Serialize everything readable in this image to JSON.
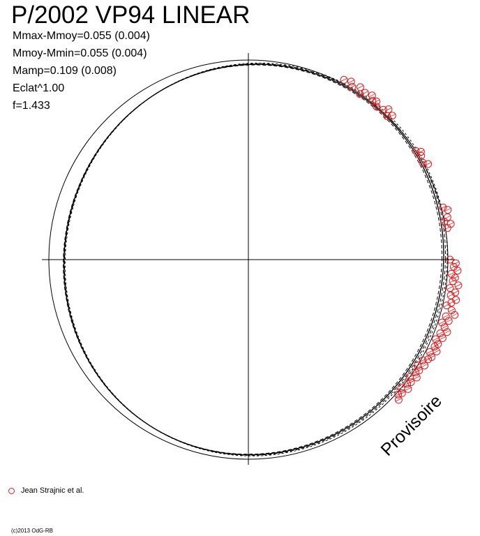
{
  "header": {
    "title": "P/2002 VP94 LINEAR",
    "stats": [
      "Mmax-Mmoy=0.055 (0.004)",
      "Mmoy-Mmin=0.055 (0.004)",
      "Mamp=0.109 (0.008)",
      "Eclat^1.00",
      "f=1.433"
    ]
  },
  "legend": {
    "label": "Jean Strajnic et al.",
    "color": "#e41a1c"
  },
  "footer": {
    "copyright": "(c)2013 OdG-RB",
    "watermark": "Provisoire"
  },
  "chart_data": {
    "type": "scatter",
    "projection": "polar",
    "reference_circle": true,
    "model_amplitude": 0.109,
    "series": [
      {
        "name": "Jean Strajnic et al.",
        "color": "#e41a1c",
        "marker": "open-circle",
        "points": [
          {
            "angle_deg": 62,
            "r": 1.02
          },
          {
            "angle_deg": 60,
            "r": 1.03
          },
          {
            "angle_deg": 59,
            "r": 1.01
          },
          {
            "angle_deg": 57,
            "r": 1.03
          },
          {
            "angle_deg": 56,
            "r": 1.0
          },
          {
            "angle_deg": 55,
            "r": 1.02
          },
          {
            "angle_deg": 53,
            "r": 1.03
          },
          {
            "angle_deg": 52,
            "r": 1.01
          },
          {
            "angle_deg": 51,
            "r": 1.02
          },
          {
            "angle_deg": 50,
            "r": 1.0
          },
          {
            "angle_deg": 48,
            "r": 1.01
          },
          {
            "angle_deg": 47,
            "r": 1.03
          },
          {
            "angle_deg": 46,
            "r": 1.0
          },
          {
            "angle_deg": 45,
            "r": 1.02
          },
          {
            "angle_deg": 33,
            "r": 1.0
          },
          {
            "angle_deg": 32,
            "r": 1.02
          },
          {
            "angle_deg": 31,
            "r": 1.01
          },
          {
            "angle_deg": 29,
            "r": 1.0
          },
          {
            "angle_deg": 28,
            "r": 1.02
          },
          {
            "angle_deg": 15,
            "r": 1.01
          },
          {
            "angle_deg": 14,
            "r": 1.03
          },
          {
            "angle_deg": 12,
            "r": 1.02
          },
          {
            "angle_deg": 11,
            "r": 1.0
          },
          {
            "angle_deg": 10,
            "r": 1.03
          },
          {
            "angle_deg": 9,
            "r": 1.01
          },
          {
            "angle_deg": 0,
            "r": 1.01
          },
          {
            "angle_deg": -1,
            "r": 1.04
          },
          {
            "angle_deg": -2,
            "r": 1.03
          },
          {
            "angle_deg": -3,
            "r": 1.05
          },
          {
            "angle_deg": -4,
            "r": 1.02
          },
          {
            "angle_deg": -5,
            "r": 1.04
          },
          {
            "angle_deg": -6,
            "r": 1.03
          },
          {
            "angle_deg": -7,
            "r": 1.06
          },
          {
            "angle_deg": -8,
            "r": 1.02
          },
          {
            "angle_deg": -9,
            "r": 1.05
          },
          {
            "angle_deg": -10,
            "r": 1.03
          },
          {
            "angle_deg": -11,
            "r": 1.06
          },
          {
            "angle_deg": -12,
            "r": 1.04
          },
          {
            "angle_deg": -13,
            "r": 1.02
          },
          {
            "angle_deg": -14,
            "r": 1.05
          },
          {
            "angle_deg": -15,
            "r": 1.07
          },
          {
            "angle_deg": -16,
            "r": 1.03
          },
          {
            "angle_deg": -17,
            "r": 1.05
          },
          {
            "angle_deg": -18,
            "r": 1.02
          },
          {
            "angle_deg": -19,
            "r": 1.04
          },
          {
            "angle_deg": -20,
            "r": 1.06
          },
          {
            "angle_deg": -21,
            "r": 1.03
          },
          {
            "angle_deg": -22,
            "r": 1.05
          },
          {
            "angle_deg": -23,
            "r": 1.02
          },
          {
            "angle_deg": -24,
            "r": 1.04
          },
          {
            "angle_deg": -25,
            "r": 1.03
          },
          {
            "angle_deg": -26,
            "r": 1.05
          },
          {
            "angle_deg": -27,
            "r": 1.02
          },
          {
            "angle_deg": -28,
            "r": 1.04
          },
          {
            "angle_deg": -29,
            "r": 1.03
          },
          {
            "angle_deg": -30,
            "r": 1.01
          },
          {
            "angle_deg": -31,
            "r": 1.03
          },
          {
            "angle_deg": -32,
            "r": 1.0
          },
          {
            "angle_deg": -33,
            "r": 1.02
          },
          {
            "angle_deg": -34,
            "r": 1.01
          },
          {
            "angle_deg": -35,
            "r": 1.03
          },
          {
            "angle_deg": -36,
            "r": 1.0
          },
          {
            "angle_deg": -37,
            "r": 1.02
          },
          {
            "angle_deg": -38,
            "r": 1.01
          },
          {
            "angle_deg": -39,
            "r": 1.03
          },
          {
            "angle_deg": -40,
            "r": 1.0
          },
          {
            "angle_deg": -41,
            "r": 1.02
          },
          {
            "angle_deg": -42,
            "r": 1.01
          },
          {
            "angle_deg": -43,
            "r": 1.03
          }
        ]
      }
    ]
  }
}
